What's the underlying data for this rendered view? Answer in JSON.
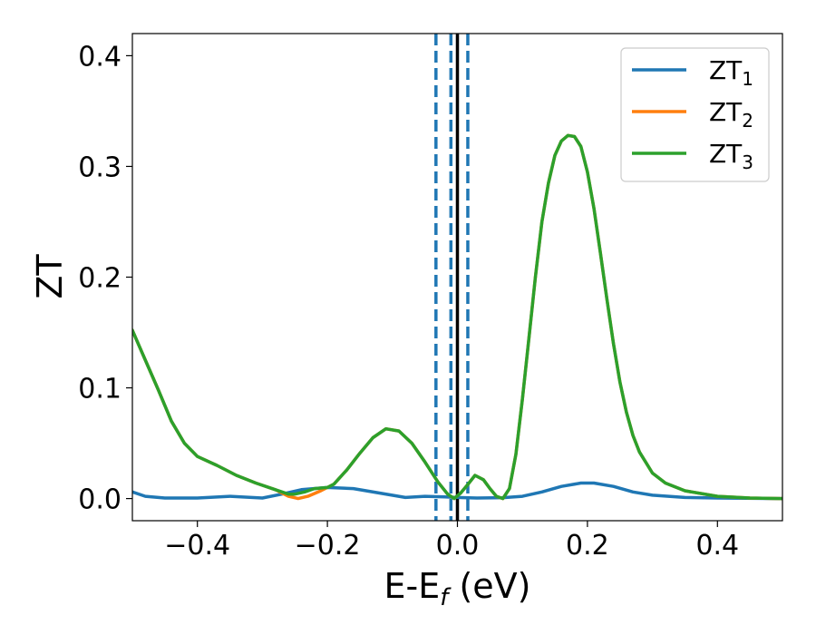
{
  "chart_data": {
    "type": "line",
    "xlabel": "E-E",
    "xlabel_sub": "f",
    "xlabel_units": " (eV)",
    "ylabel": "ZT",
    "xlim": [
      -0.5,
      0.5
    ],
    "ylim": [
      -0.02,
      0.42
    ],
    "x_ticks": [
      -0.4,
      -0.2,
      0.0,
      0.2,
      0.4
    ],
    "x_tick_labels": [
      "−0.4",
      "−0.2",
      "0.0",
      "0.2",
      "0.4"
    ],
    "y_ticks": [
      0.0,
      0.1,
      0.2,
      0.3,
      0.4
    ],
    "y_tick_labels": [
      "0.0",
      "0.1",
      "0.2",
      "0.3",
      "0.4"
    ],
    "grid": false,
    "legend_position": "top-right",
    "vertical_lines": [
      {
        "x": -0.033,
        "style": "dashed",
        "color": "#1f77b4"
      },
      {
        "x": -0.01,
        "style": "dashed",
        "color": "#1f77b4"
      },
      {
        "x": 0.0,
        "style": "solid",
        "color": "#000000"
      },
      {
        "x": 0.016,
        "style": "dashed",
        "color": "#1f77b4"
      }
    ],
    "series": [
      {
        "name": "ZT",
        "name_sub": "1",
        "color": "#1f77b4",
        "points": [
          [
            -0.5,
            0.006
          ],
          [
            -0.48,
            0.002
          ],
          [
            -0.45,
            0.0005
          ],
          [
            -0.4,
            0.0005
          ],
          [
            -0.35,
            0.002
          ],
          [
            -0.3,
            0.0005
          ],
          [
            -0.27,
            0.004
          ],
          [
            -0.24,
            0.008
          ],
          [
            -0.2,
            0.01
          ],
          [
            -0.16,
            0.009
          ],
          [
            -0.12,
            0.005
          ],
          [
            -0.08,
            0.001
          ],
          [
            -0.05,
            0.002
          ],
          [
            -0.02,
            0.0015
          ],
          [
            0.0,
            0.001
          ],
          [
            0.03,
            0.0005
          ],
          [
            0.07,
            0.0008
          ],
          [
            0.1,
            0.002
          ],
          [
            0.13,
            0.006
          ],
          [
            0.16,
            0.011
          ],
          [
            0.19,
            0.014
          ],
          [
            0.21,
            0.014
          ],
          [
            0.24,
            0.011
          ],
          [
            0.27,
            0.006
          ],
          [
            0.3,
            0.003
          ],
          [
            0.35,
            0.001
          ],
          [
            0.4,
            0.0005
          ],
          [
            0.5,
            0.0
          ]
        ]
      },
      {
        "name": "ZT",
        "name_sub": "2",
        "color": "#ff7f0e",
        "points": [
          [
            -0.5,
            0.152
          ],
          [
            -0.48,
            0.125
          ],
          [
            -0.46,
            0.098
          ],
          [
            -0.44,
            0.07
          ],
          [
            -0.42,
            0.05
          ],
          [
            -0.4,
            0.038
          ],
          [
            -0.37,
            0.03
          ],
          [
            -0.34,
            0.021
          ],
          [
            -0.31,
            0.014
          ],
          [
            -0.28,
            0.008
          ],
          [
            -0.26,
            0.002
          ],
          [
            -0.245,
            0.0
          ],
          [
            -0.23,
            0.002
          ],
          [
            -0.21,
            0.007
          ],
          [
            -0.19,
            0.013
          ],
          [
            -0.17,
            0.026
          ],
          [
            -0.15,
            0.041
          ],
          [
            -0.13,
            0.055
          ],
          [
            -0.11,
            0.063
          ],
          [
            -0.09,
            0.061
          ],
          [
            -0.07,
            0.05
          ],
          [
            -0.05,
            0.033
          ],
          [
            -0.03,
            0.015
          ],
          [
            -0.015,
            0.004
          ],
          [
            -0.005,
            0.0
          ],
          [
            0.005,
            0.005
          ],
          [
            0.015,
            0.012
          ],
          [
            0.027,
            0.021
          ],
          [
            0.04,
            0.017
          ],
          [
            0.05,
            0.009
          ],
          [
            0.06,
            0.002
          ],
          [
            0.07,
            0.0
          ],
          [
            0.08,
            0.009
          ],
          [
            0.09,
            0.04
          ],
          [
            0.1,
            0.09
          ],
          [
            0.11,
            0.145
          ],
          [
            0.12,
            0.2
          ],
          [
            0.13,
            0.25
          ],
          [
            0.14,
            0.285
          ],
          [
            0.15,
            0.31
          ],
          [
            0.16,
            0.323
          ],
          [
            0.17,
            0.328
          ],
          [
            0.18,
            0.327
          ],
          [
            0.19,
            0.318
          ],
          [
            0.2,
            0.295
          ],
          [
            0.21,
            0.262
          ],
          [
            0.22,
            0.222
          ],
          [
            0.23,
            0.18
          ],
          [
            0.24,
            0.14
          ],
          [
            0.25,
            0.105
          ],
          [
            0.26,
            0.078
          ],
          [
            0.27,
            0.057
          ],
          [
            0.28,
            0.042
          ],
          [
            0.3,
            0.023
          ],
          [
            0.32,
            0.014
          ],
          [
            0.35,
            0.007
          ],
          [
            0.4,
            0.002
          ],
          [
            0.45,
            0.0005
          ],
          [
            0.5,
            0.0
          ]
        ]
      },
      {
        "name": "ZT",
        "name_sub": "3",
        "color": "#2ca02c",
        "points": [
          [
            -0.5,
            0.152
          ],
          [
            -0.48,
            0.125
          ],
          [
            -0.46,
            0.098
          ],
          [
            -0.44,
            0.07
          ],
          [
            -0.42,
            0.05
          ],
          [
            -0.4,
            0.038
          ],
          [
            -0.37,
            0.03
          ],
          [
            -0.34,
            0.021
          ],
          [
            -0.31,
            0.014
          ],
          [
            -0.28,
            0.008
          ],
          [
            -0.26,
            0.004
          ],
          [
            -0.25,
            0.004
          ],
          [
            -0.235,
            0.006
          ],
          [
            -0.22,
            0.009
          ],
          [
            -0.2,
            0.01
          ],
          [
            -0.19,
            0.013
          ],
          [
            -0.17,
            0.026
          ],
          [
            -0.15,
            0.041
          ],
          [
            -0.13,
            0.055
          ],
          [
            -0.11,
            0.063
          ],
          [
            -0.09,
            0.061
          ],
          [
            -0.07,
            0.05
          ],
          [
            -0.05,
            0.033
          ],
          [
            -0.03,
            0.015
          ],
          [
            -0.015,
            0.004
          ],
          [
            -0.005,
            0.0
          ],
          [
            0.005,
            0.005
          ],
          [
            0.015,
            0.012
          ],
          [
            0.027,
            0.021
          ],
          [
            0.04,
            0.017
          ],
          [
            0.05,
            0.009
          ],
          [
            0.06,
            0.002
          ],
          [
            0.07,
            0.0
          ],
          [
            0.08,
            0.009
          ],
          [
            0.09,
            0.04
          ],
          [
            0.1,
            0.09
          ],
          [
            0.11,
            0.145
          ],
          [
            0.12,
            0.2
          ],
          [
            0.13,
            0.25
          ],
          [
            0.14,
            0.285
          ],
          [
            0.15,
            0.31
          ],
          [
            0.16,
            0.323
          ],
          [
            0.17,
            0.328
          ],
          [
            0.18,
            0.327
          ],
          [
            0.19,
            0.318
          ],
          [
            0.2,
            0.295
          ],
          [
            0.21,
            0.262
          ],
          [
            0.22,
            0.222
          ],
          [
            0.23,
            0.18
          ],
          [
            0.24,
            0.14
          ],
          [
            0.25,
            0.105
          ],
          [
            0.26,
            0.078
          ],
          [
            0.27,
            0.057
          ],
          [
            0.28,
            0.042
          ],
          [
            0.3,
            0.023
          ],
          [
            0.32,
            0.014
          ],
          [
            0.35,
            0.007
          ],
          [
            0.4,
            0.002
          ],
          [
            0.45,
            0.0005
          ],
          [
            0.5,
            0.0
          ]
        ]
      }
    ]
  }
}
